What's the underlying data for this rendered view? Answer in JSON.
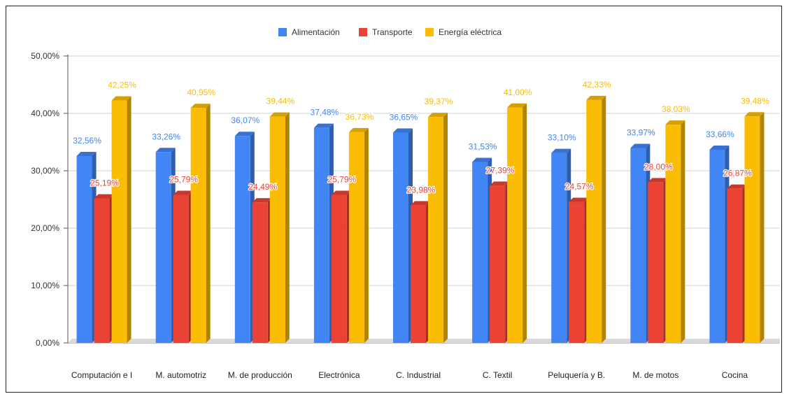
{
  "chart_data": {
    "type": "bar",
    "style": "3d-clustered-column",
    "categories": [
      "Computación e I",
      "M. automotriz",
      "M. de producción",
      "Electrónica",
      "C. Industrial",
      "C. Textil",
      "Peluquería y B.",
      "M. de motos",
      "Cocina"
    ],
    "series": [
      {
        "name": "Alimentación",
        "color": "#4285f4",
        "values": [
          32.56,
          33.26,
          36.07,
          37.48,
          36.65,
          31.53,
          33.1,
          33.97,
          33.66
        ],
        "labels": [
          "32,56%",
          "33,26%",
          "36,07%",
          "37,48%",
          "36,65%",
          "31,53%",
          "33,10%",
          "33,97%",
          "33,66%"
        ]
      },
      {
        "name": "Transporte",
        "color": "#ea4335",
        "values": [
          25.19,
          25.79,
          24.49,
          25.79,
          23.98,
          27.39,
          24.57,
          28.0,
          26.87
        ],
        "labels": [
          "25,19%",
          "25,79%",
          "24,49%",
          "25,79%",
          "23,98%",
          "27,39%",
          "24,57%",
          "28,00%",
          "26,87%"
        ]
      },
      {
        "name": "Energía eléctrica",
        "color": "#fbbc04",
        "values": [
          42.25,
          40.95,
          39.44,
          36.73,
          39.37,
          41.0,
          42.33,
          38.03,
          39.48
        ],
        "labels": [
          "42,25%",
          "40,95%",
          "39,44%",
          "36,73%",
          "39,37%",
          "41,00%",
          "42,33%",
          "38,03%",
          "39,48%"
        ]
      }
    ],
    "ylim": [
      0,
      50
    ],
    "yticks": [
      0,
      10,
      20,
      30,
      40,
      50
    ],
    "ytick_labels": [
      "0,00%",
      "10,00%",
      "20,00%",
      "30,00%",
      "40,00%",
      "50,00%"
    ],
    "grid": true,
    "legend_position": "top"
  }
}
